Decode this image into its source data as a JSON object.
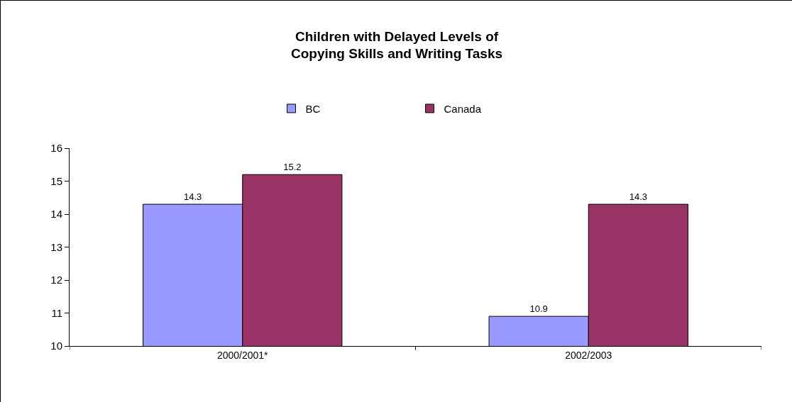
{
  "chart_data": {
    "type": "bar",
    "title": "Children with Delayed Levels of\nCopying Skills and Writing Tasks",
    "categories": [
      "2000/2001*",
      "2002/2003"
    ],
    "series": [
      {
        "name": "BC",
        "color": "#9999ff",
        "values": [
          14.3,
          10.9
        ]
      },
      {
        "name": "Canada",
        "color": "#993366",
        "values": [
          15.2,
          14.3
        ]
      }
    ],
    "ylim": [
      10,
      16
    ],
    "yticks": [
      10,
      11,
      12,
      13,
      14,
      15,
      16
    ],
    "grid": false,
    "legend": "top",
    "data_labels": true
  }
}
